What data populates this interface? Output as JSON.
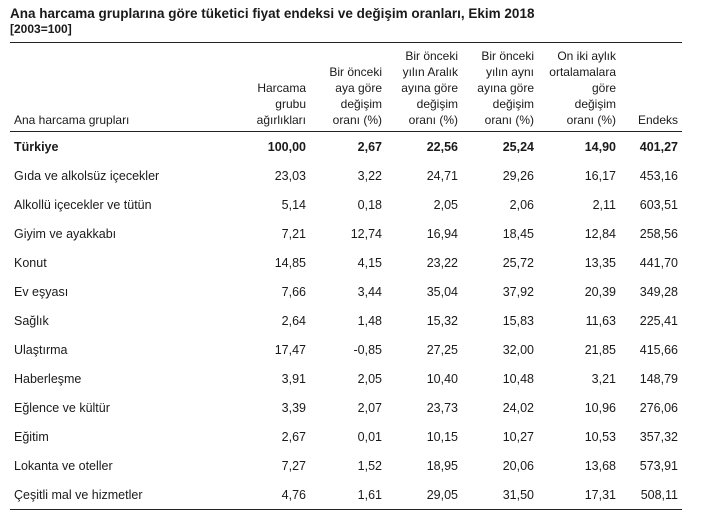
{
  "title": "Ana harcama gruplarına göre tüketici fiyat endeksi ve değişim oranları, Ekim 2018",
  "subtitle": "[2003=100]",
  "columns": [
    {
      "lines": [
        "Ana harcama grupları"
      ]
    },
    {
      "lines": [
        "Harcama",
        "grubu",
        "ağırlıkları"
      ]
    },
    {
      "lines": [
        "Bir önceki",
        "aya göre",
        "değişim",
        "oranı (%)"
      ]
    },
    {
      "lines": [
        "Bir önceki",
        "yılın Aralık",
        "ayına göre",
        "değişim",
        "oranı (%)"
      ]
    },
    {
      "lines": [
        "Bir önceki",
        "yılın aynı",
        "ayına göre",
        "değişim",
        "oranı (%)"
      ]
    },
    {
      "lines": [
        "On iki aylık",
        "ortalamalara",
        "göre",
        "değişim",
        "oranı (%)"
      ]
    },
    {
      "lines": [
        "Endeks"
      ]
    }
  ],
  "rows": [
    {
      "cells": [
        "Türkiye",
        "100,00",
        "2,67",
        "22,56",
        "25,24",
        "14,90",
        "401,27"
      ],
      "bold": true
    },
    {
      "cells": [
        "Gıda ve alkolsüz içecekler",
        "23,03",
        "3,22",
        "24,71",
        "29,26",
        "16,17",
        "453,16"
      ]
    },
    {
      "cells": [
        "Alkollü içecekler ve tütün",
        "5,14",
        "0,18",
        "2,05",
        "2,06",
        "2,11",
        "603,51"
      ]
    },
    {
      "cells": [
        "Giyim ve ayakkabı",
        "7,21",
        "12,74",
        "16,94",
        "18,45",
        "12,84",
        "258,56"
      ]
    },
    {
      "cells": [
        "Konut",
        "14,85",
        "4,15",
        "23,22",
        "25,72",
        "13,35",
        "441,70"
      ]
    },
    {
      "cells": [
        "Ev eşyası",
        "7,66",
        "3,44",
        "35,04",
        "37,92",
        "20,39",
        "349,28"
      ]
    },
    {
      "cells": [
        "Sağlık",
        "2,64",
        "1,48",
        "15,32",
        "15,83",
        "11,63",
        "225,41"
      ]
    },
    {
      "cells": [
        "Ulaştırma",
        "17,47",
        "-0,85",
        "27,25",
        "32,00",
        "21,85",
        "415,66"
      ]
    },
    {
      "cells": [
        "Haberleşme",
        "3,91",
        "2,05",
        "10,40",
        "10,48",
        "3,21",
        "148,79"
      ]
    },
    {
      "cells": [
        "Eğlence ve kültür",
        "3,39",
        "2,07",
        "23,73",
        "24,02",
        "10,96",
        "276,06"
      ]
    },
    {
      "cells": [
        "Eğitim",
        "2,67",
        "0,01",
        "10,15",
        "10,27",
        "10,53",
        "357,32"
      ]
    },
    {
      "cells": [
        "Lokanta ve oteller",
        "7,27",
        "1,52",
        "18,95",
        "20,06",
        "13,68",
        "573,91"
      ]
    },
    {
      "cells": [
        "Çeşitli mal ve hizmetler",
        "4,76",
        "1,61",
        "29,05",
        "31,50",
        "17,31",
        "508,11"
      ]
    }
  ]
}
